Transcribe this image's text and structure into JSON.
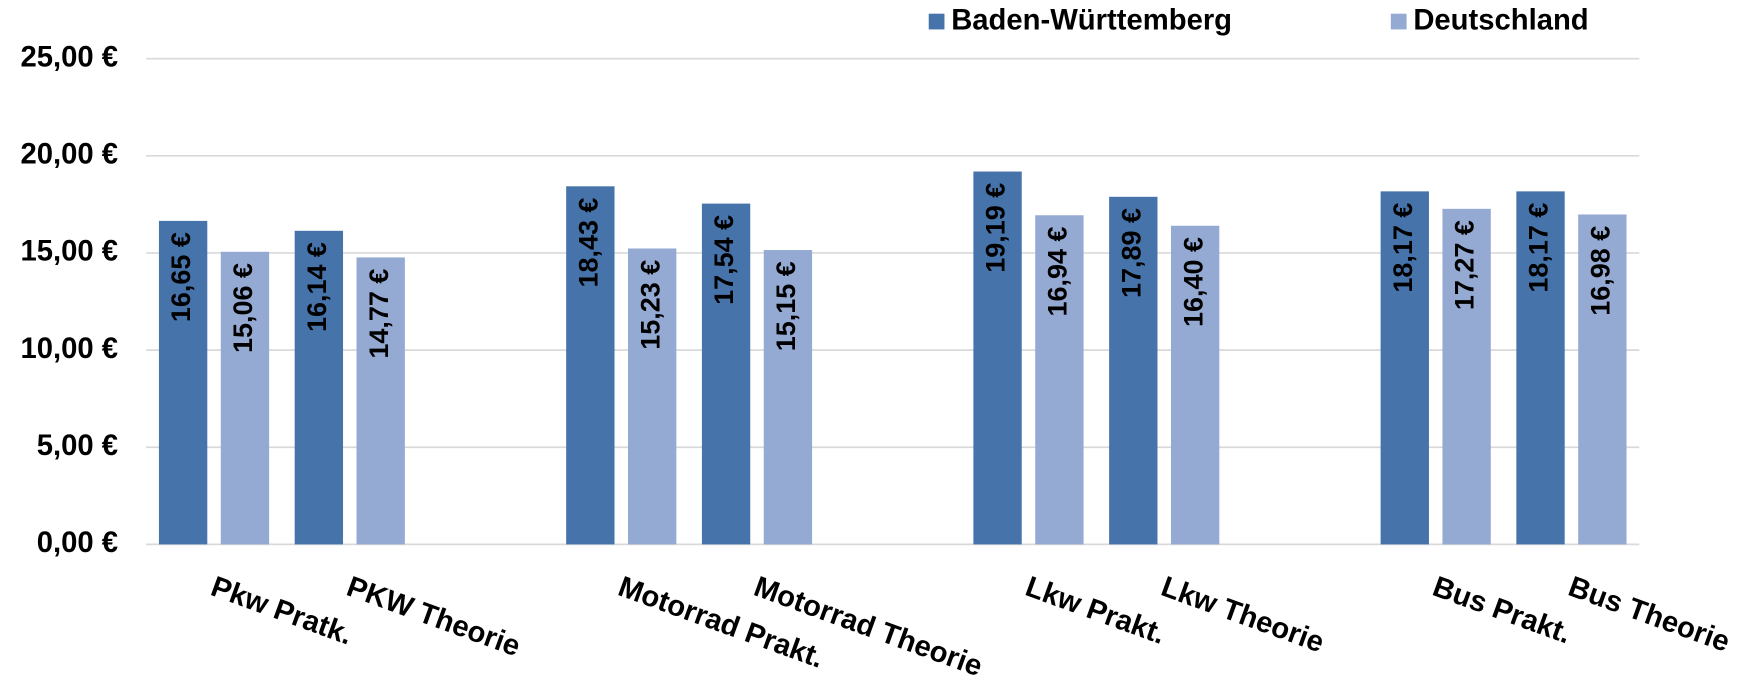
{
  "chart_data": {
    "type": "bar",
    "categories": [
      "Pkw Pratk.",
      "PKW Theorie",
      null,
      "Motorrad Prakt.",
      "Motorrad Theorie",
      null,
      "Lkw Prakt.",
      "Lkw Theorie",
      null,
      "Bus Prakt.",
      "Bus Theorie"
    ],
    "series": [
      {
        "name": "Baden-Württemberg",
        "color": "#4673a9",
        "values": [
          16.65,
          16.14,
          null,
          18.43,
          17.54,
          null,
          19.19,
          17.89,
          null,
          18.17,
          18.17
        ],
        "value_labels": [
          "16,65 €",
          "16,14 €",
          null,
          "18,43 €",
          "17,54 €",
          null,
          "19,19 €",
          "17,89 €",
          null,
          "18,17 €",
          "18,17 €"
        ]
      },
      {
        "name": "Deutschland",
        "color": "#95aad2",
        "values": [
          15.06,
          14.77,
          null,
          15.23,
          15.15,
          null,
          16.94,
          16.4,
          null,
          17.27,
          16.98
        ],
        "value_labels": [
          "15,06 €",
          "14,77 €",
          null,
          "15,23 €",
          "15,15 €",
          null,
          "16,94 €",
          "16,40 €",
          null,
          "17,27 €",
          "16,98 €"
        ]
      }
    ],
    "ylim": [
      0,
      25
    ],
    "yticks": [
      {
        "value": 0,
        "label": "0,00 €"
      },
      {
        "value": 5,
        "label": "5,00 €"
      },
      {
        "value": 10,
        "label": "10,00 €"
      },
      {
        "value": 15,
        "label": "15,00 €"
      },
      {
        "value": 20,
        "label": "20,00 €"
      },
      {
        "value": 25,
        "label": "25,00 €"
      }
    ],
    "grid": true,
    "legend": "top"
  }
}
